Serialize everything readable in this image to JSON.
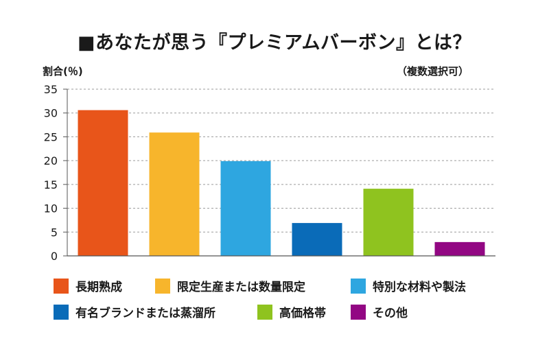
{
  "title": "■あなたが思う『プレミアムバーボン』とは？",
  "note": "（複数選択可）",
  "chart_data": {
    "type": "bar",
    "ylabel": "割合(％)",
    "ylim": [
      0,
      35
    ],
    "yticks": [
      "0",
      "5",
      "10",
      "15",
      "20",
      "25",
      "30",
      "35"
    ],
    "grid": true,
    "legend_position": "bottom",
    "categories": [
      "長期熟成",
      "限定生産または数量限定",
      "特別な材料や製法",
      "有名ブランドまたは蒸溜所",
      "高価格帯",
      "その他"
    ],
    "values": [
      30.6,
      25.9,
      19.9,
      6.9,
      14.1,
      2.9
    ],
    "colors": [
      "#e8551a",
      "#f7b52c",
      "#2ea6e0",
      "#0a6bb8",
      "#8fc31f",
      "#920783"
    ]
  }
}
